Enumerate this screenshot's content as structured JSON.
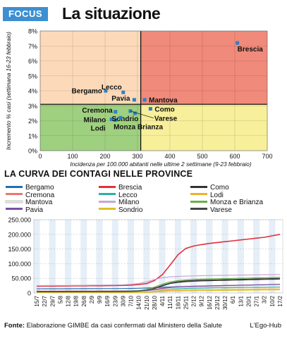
{
  "header": {
    "tag": "FOCUS",
    "title": "La situazione"
  },
  "chart_data": [
    {
      "type": "scatter",
      "title": "",
      "xlabel": "Incidenza per 100.000 abitanti nelle ultime 2 settimane (9-23 febbraio)",
      "ylabel": "Incremento % casi (settimana 16-23 febbraio)",
      "xlim": [
        0,
        700
      ],
      "ylim": [
        0,
        8
      ],
      "x_ticks": [
        "0",
        "100",
        "200",
        "300",
        "400",
        "500",
        "600",
        "700"
      ],
      "y_ticks": [
        "0%",
        "1%",
        "2%",
        "3%",
        "4%",
        "5%",
        "6%",
        "7%",
        "8%"
      ],
      "threshold_x": 310,
      "threshold_y": 3.1,
      "quadrant_colors": {
        "top_left": "#fcd9b8",
        "top_right": "#f08a7a",
        "bottom_left": "#9fd07f",
        "bottom_right": "#f8ef9a"
      },
      "point_color": "#2f7fc4",
      "points": [
        {
          "label": "Brescia",
          "x": 608,
          "y": 7.2
        },
        {
          "label": "Bergamo",
          "x": 202,
          "y": 4.0
        },
        {
          "label": "Lecco",
          "x": 256,
          "y": 3.9
        },
        {
          "label": "Pavia",
          "x": 290,
          "y": 3.4
        },
        {
          "label": "Mantova",
          "x": 322,
          "y": 3.4
        },
        {
          "label": "Como",
          "x": 340,
          "y": 2.8
        },
        {
          "label": "Cremona",
          "x": 232,
          "y": 2.6
        },
        {
          "label": "Varese",
          "x": 278,
          "y": 2.65
        },
        {
          "label": "Milano",
          "x": 220,
          "y": 2.1
        },
        {
          "label": "Lodi",
          "x": 232,
          "y": 2.05
        },
        {
          "label": "Sondrio",
          "x": 292,
          "y": 2.5
        },
        {
          "label": "Monza Brianza",
          "x": 248,
          "y": 2.2
        }
      ]
    },
    {
      "type": "line",
      "title": "LA CURVA DEI CONTAGI NELLE PROVINCE",
      "x": [
        "15/7",
        "22/7",
        "29/7",
        "5/8",
        "12/8",
        "19/8",
        "26/8",
        "2/9",
        "9/9",
        "16/9",
        "23/9",
        "30/9",
        "7/10",
        "14/10",
        "21/10",
        "28/10",
        "4/11",
        "11/11",
        "18/11",
        "25/11",
        "2/12",
        "9/12",
        "16/12",
        "23/12",
        "30/12",
        "6/1",
        "13/1",
        "20/1",
        "27/1",
        "3/2",
        "10/2",
        "17/2"
      ],
      "y_ticks": [
        "0",
        "50.000",
        "100.000",
        "150.000",
        "200.000",
        "250.000"
      ],
      "ylim": [
        0,
        250000
      ],
      "series": [
        {
          "name": "Bergamo",
          "color": "#1f6fb5",
          "values": [
            14000,
            14100,
            14200,
            14300,
            14400,
            14500,
            14600,
            14700,
            14800,
            14900,
            15000,
            15200,
            15500,
            16000,
            16800,
            18000,
            19500,
            20500,
            21300,
            22000,
            22600,
            23100,
            23600,
            24000,
            24400,
            24800,
            25200,
            25600,
            26000,
            26500,
            27100,
            28000
          ]
        },
        {
          "name": "Brescia",
          "color": "#e0313d",
          "values": [
            23000,
            23200,
            23400,
            23600,
            23800,
            24000,
            24200,
            24400,
            24600,
            24800,
            25200,
            25800,
            26800,
            28500,
            32000,
            42000,
            62000,
            95000,
            130000,
            152000,
            160000,
            165000,
            169000,
            172000,
            175000,
            178000,
            181000,
            184000,
            187000,
            190000,
            195000,
            200000
          ]
        },
        {
          "name": "Como",
          "color": "#333333",
          "values": [
            4500,
            4550,
            4600,
            4650,
            4700,
            4750,
            4800,
            4850,
            4900,
            4950,
            5000,
            5200,
            5600,
            6500,
            9000,
            15000,
            24000,
            32000,
            36000,
            38500,
            40000,
            41000,
            41800,
            42500,
            43100,
            43700,
            44300,
            44900,
            45500,
            46100,
            46700,
            47300
          ]
        },
        {
          "name": "Cremona",
          "color": "#e8786c",
          "values": [
            6500,
            6550,
            6600,
            6650,
            6700,
            6750,
            6800,
            6850,
            6900,
            6950,
            7000,
            7100,
            7300,
            7800,
            9000,
            12000,
            16000,
            19000,
            21000,
            22300,
            23200,
            23900,
            24500,
            25000,
            25500,
            26000,
            26500,
            27000,
            27500,
            28000,
            28600,
            29200
          ]
        },
        {
          "name": "Lecco",
          "color": "#2ab0a5",
          "values": [
            3000,
            3030,
            3060,
            3090,
            3120,
            3150,
            3180,
            3210,
            3240,
            3270,
            3300,
            3400,
            3600,
            4100,
            5200,
            7500,
            10500,
            13000,
            14500,
            15500,
            16200,
            16700,
            17100,
            17500,
            17800,
            18100,
            18400,
            18700,
            19000,
            19300,
            19700,
            20100
          ]
        },
        {
          "name": "Lodi",
          "color": "#f0b030",
          "values": [
            3600,
            3620,
            3640,
            3660,
            3680,
            3700,
            3720,
            3740,
            3760,
            3780,
            3800,
            3850,
            3950,
            4200,
            4800,
            6000,
            7500,
            8800,
            9700,
            10300,
            10700,
            11000,
            11300,
            11600,
            11900,
            12200,
            12500,
            12800,
            13100,
            13400,
            13700,
            14000
          ]
        },
        {
          "name": "Mantova",
          "color": "#dddddd",
          "values": [
            4000,
            4030,
            4060,
            4090,
            4120,
            4150,
            4180,
            4210,
            4240,
            4270,
            4300,
            4400,
            4600,
            5000,
            6200,
            8500,
            12000,
            15000,
            17000,
            18500,
            19500,
            20300,
            21000,
            21700,
            22400,
            23100,
            23800,
            24500,
            25200,
            25900,
            26700,
            27500
          ]
        },
        {
          "name": "Milano",
          "color": "#c9a6d6",
          "values": [
            25000,
            25200,
            25400,
            25600,
            25800,
            26000,
            26300,
            26600,
            26900,
            27200,
            27600,
            28200,
            29500,
            32500,
            38000,
            46000,
            52000,
            55000,
            56500,
            57500,
            58200,
            58800,
            59300,
            59800,
            60200,
            60600,
            61000,
            61400,
            61800,
            62200,
            62600,
            63000
          ]
        },
        {
          "name": "Monza e Brianza",
          "color": "#6ab04c",
          "values": [
            5700,
            5750,
            5800,
            5850,
            5900,
            5950,
            6000,
            6050,
            6100,
            6150,
            6200,
            6400,
            6900,
            8200,
            12000,
            20000,
            30000,
            38000,
            42000,
            44500,
            46000,
            47000,
            47800,
            48500,
            49100,
            49700,
            50300,
            50900,
            51500,
            52100,
            52700,
            53300
          ]
        },
        {
          "name": "Pavia",
          "color": "#7b4ea8",
          "values": [
            5500,
            5530,
            5560,
            5590,
            5620,
            5650,
            5680,
            5710,
            5740,
            5770,
            5800,
            5900,
            6100,
            6700,
            8000,
            11000,
            15000,
            18500,
            20500,
            21800,
            22700,
            23400,
            24000,
            24600,
            25200,
            25800,
            26400,
            27000,
            27600,
            28200,
            28800,
            29400
          ]
        },
        {
          "name": "Sondrio",
          "color": "#e0c020",
          "values": [
            1600,
            1610,
            1620,
            1630,
            1640,
            1650,
            1660,
            1670,
            1680,
            1690,
            1700,
            1720,
            1780,
            1950,
            2400,
            3300,
            4500,
            5600,
            6400,
            7000,
            7400,
            7700,
            8000,
            8300,
            8600,
            8900,
            9200,
            9500,
            9800,
            10100,
            10400,
            10700
          ]
        },
        {
          "name": "Varese",
          "color": "#444444",
          "values": [
            3800,
            3830,
            3860,
            3890,
            3920,
            3950,
            3980,
            4010,
            4040,
            4070,
            4100,
            4300,
            4800,
            6000,
            9000,
            16000,
            26000,
            34000,
            38500,
            41000,
            42500,
            43500,
            44300,
            45000,
            45600,
            46200,
            46800,
            47400,
            48000,
            48600,
            49200,
            49800
          ]
        }
      ]
    }
  ],
  "footer": {
    "source_label": "Fonte:",
    "source_text": " Elaborazione GIMBE da casi confermati dal Ministero della Salute",
    "brand": "L'Ego-Hub"
  }
}
